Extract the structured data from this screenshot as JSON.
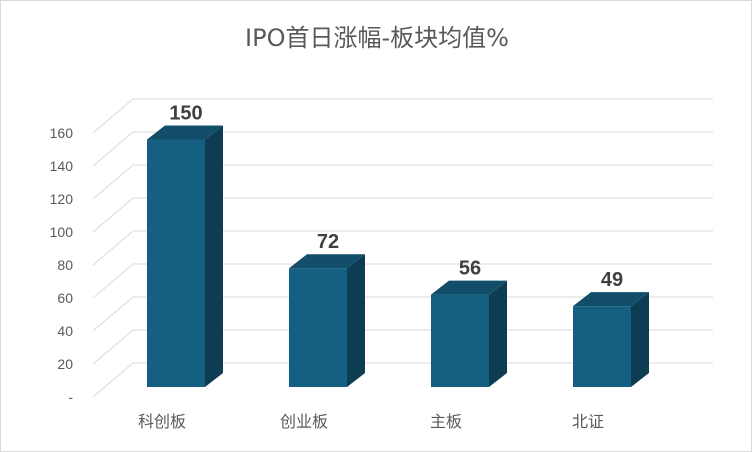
{
  "chart_data": {
    "type": "bar",
    "title": "IPO首日涨幅-板块均值%",
    "categories": [
      "科创板",
      "创业板",
      "主板",
      "北证"
    ],
    "values": [
      150,
      72,
      56,
      49
    ],
    "data_labels": [
      "150",
      "72",
      "56",
      "49"
    ],
    "xlabel": "",
    "ylabel": "",
    "ylim": [
      0,
      160
    ],
    "y_ticks": [
      {
        "value": 0,
        "label": "-"
      },
      {
        "value": 20,
        "label": "20"
      },
      {
        "value": 40,
        "label": "40"
      },
      {
        "value": 60,
        "label": "60"
      },
      {
        "value": 80,
        "label": "80"
      },
      {
        "value": 100,
        "label": "100"
      },
      {
        "value": 120,
        "label": "120"
      },
      {
        "value": 140,
        "label": "140"
      },
      {
        "value": 160,
        "label": "160"
      }
    ],
    "grid": true,
    "style": "3d-column",
    "colors": {
      "bar_front": "#156082",
      "bar_side": "#0e3c52",
      "bar_top": "#124e6a",
      "grid": "#d9d9d9",
      "text": "#595959",
      "value_label": "#404040"
    }
  }
}
